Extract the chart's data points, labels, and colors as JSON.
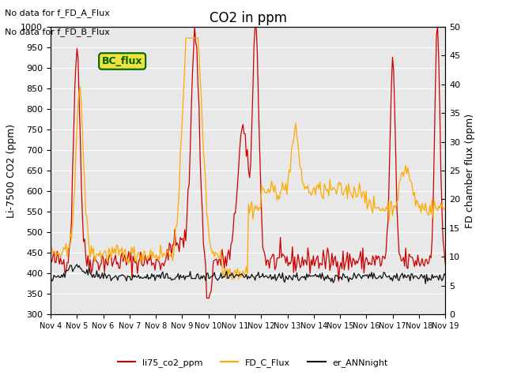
{
  "title": "CO2 in ppm",
  "ylabel_left": "Li-7500 CO2 (ppm)",
  "ylabel_right": "FD chamber flux (ppm)",
  "ylim_left": [
    300,
    1000
  ],
  "ylim_right": [
    0,
    50
  ],
  "xlim": [
    0,
    360
  ],
  "bg_color": "#e8e8e8",
  "text_no_data_a": "No data for f_FD_A_Flux",
  "text_no_data_b": "No data for f_FD_B_Flux",
  "bc_flux_label": "BC_flux",
  "legend_entries": [
    "li75_co2_ppm",
    "FD_C_Flux",
    "er_ANNnight"
  ],
  "legend_colors": [
    "#cc0000",
    "#ffaa00",
    "#111111"
  ],
  "xtick_labels": [
    "Nov 4",
    "Nov 5",
    "Nov 6",
    "Nov 7",
    "Nov 8",
    "Nov 9",
    "Nov 10",
    "Nov 11",
    "Nov 12",
    "Nov 13",
    "Nov 14",
    "Nov 15",
    "Nov 16",
    "Nov 17",
    "Nov 18",
    "Nov 19"
  ],
  "num_points": 360
}
